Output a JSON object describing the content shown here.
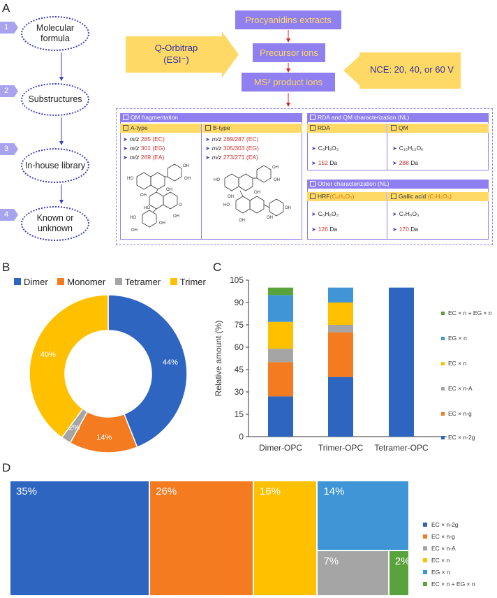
{
  "panels": {
    "a": "A",
    "b": "B",
    "c": "C",
    "d": "D"
  },
  "steps": [
    {
      "num": "1",
      "label": "Molecular formula"
    },
    {
      "num": "2",
      "label": "Substructures"
    },
    {
      "num": "3",
      "label": "In-house library"
    },
    {
      "num": "4",
      "label": "Known or unknown"
    }
  ],
  "flow": {
    "extracts": "Procyanidins extracts",
    "orbitrap": "Q-Orbitrap",
    "orbitrap_mode": "(ESI⁻)",
    "precursor": "Precursor ions",
    "product": "MS² product ions",
    "nce": "NCE: 20, 40, or 60 V"
  },
  "qm": {
    "title": "QM fragmentation",
    "a_type": "A-type",
    "b_type": "B-type",
    "a_rows": [
      {
        "mz": "m/z",
        "value": "285",
        "tag": "(EC)"
      },
      {
        "mz": "m/z",
        "value": "301",
        "tag": "(EG)"
      },
      {
        "mz": "m/z",
        "value": "269",
        "tag": "(EA)"
      }
    ],
    "b_rows": [
      {
        "mz": "m/z",
        "value": "289/287",
        "tag": "(EC)"
      },
      {
        "mz": "m/z",
        "value": "305/303",
        "tag": "(EG)"
      },
      {
        "mz": "m/z",
        "value": "273/271",
        "tag": "(EA)"
      }
    ]
  },
  "rda": {
    "title": "RDA and QM characterization (NL)",
    "rda_label": "RDA",
    "qm_label": "QM",
    "rda_formula": "C₈H₈O₃",
    "rda_da": "152",
    "qm_formula": "C₁₅H₁₂O₆",
    "qm_da": "288",
    "da_unit": "Da"
  },
  "other": {
    "title": "Other characterization (NL)",
    "hrf_label": "HRF",
    "hrf_formula": "(C₆H₆O₃)",
    "gallic_label": "Gallic acid",
    "gallic_formula": "(C₇H₆O₅)",
    "hrf_row_formula": "C₆H₆O₃",
    "hrf_da": "126",
    "gallic_row_formula": "C₇H₆O₅",
    "gallic_da": "170",
    "da_unit": "Da"
  },
  "colors": {
    "blue": "#2e65c1",
    "orange": "#f47b20",
    "gray": "#a5a5a5",
    "yellow": "#ffc000",
    "lightblue": "#3f95d6",
    "green": "#5aa23c",
    "purple": "#8f7ff0",
    "paleyellow": "#ffd966"
  },
  "chart_data": [
    {
      "type": "pie",
      "variant": "donut",
      "legend_position": "top",
      "categories": [
        "Dimer",
        "Monomer",
        "Tetramer",
        "Trimer"
      ],
      "values": [
        44,
        14,
        2,
        40
      ],
      "labels": [
        "44%",
        "14%",
        "2%",
        "40%"
      ]
    },
    {
      "type": "bar",
      "stacked": true,
      "categories": [
        "Dimer-OPC",
        "Trimer-OPC",
        "Tetramer-OPC"
      ],
      "ylabel": "Relative amount (%)",
      "xlabel": "",
      "ylim": [
        0,
        105
      ],
      "yticks": [
        "0",
        "15",
        "30",
        "45",
        "60",
        "75",
        "90",
        "105"
      ],
      "legend_position": "right",
      "series": [
        {
          "name": "EC × n-2g",
          "values": [
            27,
            40,
            100
          ]
        },
        {
          "name": "EC × n-g",
          "values": [
            23,
            30,
            0
          ]
        },
        {
          "name": "EC × n-A",
          "values": [
            9,
            5,
            0
          ]
        },
        {
          "name": "EC × n",
          "values": [
            18,
            15,
            0
          ]
        },
        {
          "name": "EG × n",
          "values": [
            18,
            10,
            0
          ]
        },
        {
          "name": "EC × n + EG × n",
          "values": [
            5,
            0,
            0
          ]
        }
      ]
    },
    {
      "type": "treemap",
      "legend_position": "right",
      "categories": [
        "EC × n-2g",
        "EC × n-g",
        "EC × n-A",
        "EC × n",
        "EG × n",
        "EC × n + EG × n"
      ],
      "values": [
        35,
        26,
        7,
        16,
        14,
        2
      ],
      "labels": [
        "35%",
        "26%",
        "7%",
        "16%",
        "14%",
        "2%"
      ]
    }
  ]
}
